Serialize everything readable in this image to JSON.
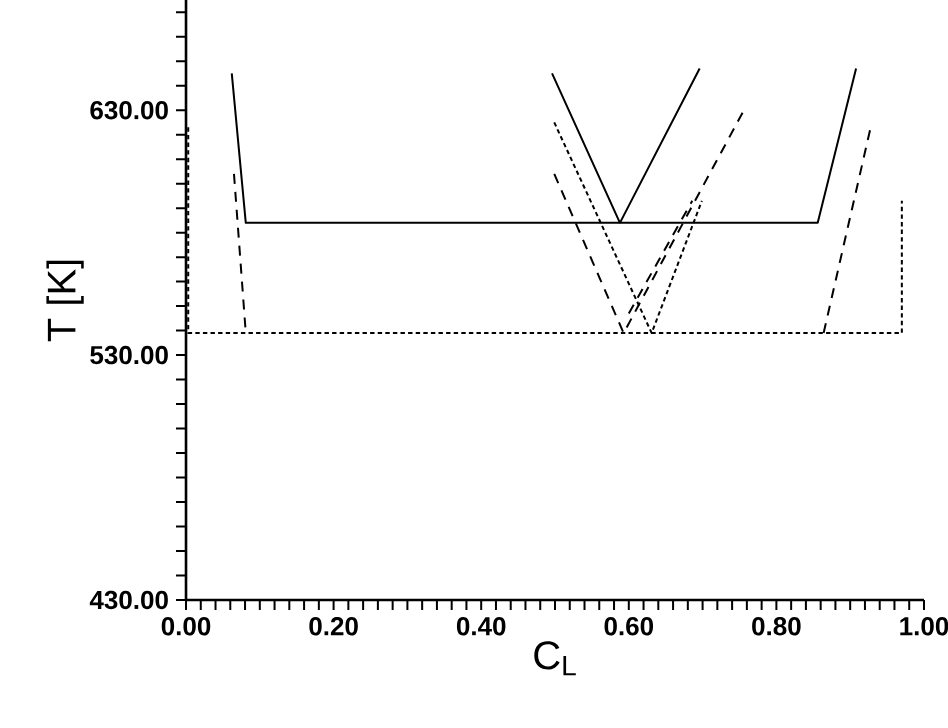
{
  "chart_data": {
    "type": "line",
    "xlabel": "C$_{L}$",
    "ylabel": "T [K]",
    "xlim": [
      0,
      1
    ],
    "ylim": [
      430,
      675
    ],
    "xticks": [
      {
        "value": 0,
        "label": "0.00"
      },
      {
        "value": 0.02,
        "label": null
      },
      {
        "value": 0.04,
        "label": null
      },
      {
        "value": 0.06,
        "label": null
      },
      {
        "value": 0.08,
        "label": null
      },
      {
        "value": 0.1,
        "label": null
      },
      {
        "value": 0.12,
        "label": null
      },
      {
        "value": 0.14,
        "label": null
      },
      {
        "value": 0.16,
        "label": null
      },
      {
        "value": 0.18,
        "label": null
      },
      {
        "value": 0.2,
        "label": "0.20"
      },
      {
        "value": 0.22,
        "label": null
      },
      {
        "value": 0.24,
        "label": null
      },
      {
        "value": 0.26,
        "label": null
      },
      {
        "value": 0.28,
        "label": null
      },
      {
        "value": 0.3,
        "label": null
      },
      {
        "value": 0.32,
        "label": null
      },
      {
        "value": 0.34,
        "label": null
      },
      {
        "value": 0.36,
        "label": null
      },
      {
        "value": 0.38,
        "label": null
      },
      {
        "value": 0.4,
        "label": "0.40"
      },
      {
        "value": 0.42,
        "label": null
      },
      {
        "value": 0.44,
        "label": null
      },
      {
        "value": 0.46,
        "label": null
      },
      {
        "value": 0.48,
        "label": null
      },
      {
        "value": 0.5,
        "label": null
      },
      {
        "value": 0.52,
        "label": null
      },
      {
        "value": 0.54,
        "label": null
      },
      {
        "value": 0.56,
        "label": null
      },
      {
        "value": 0.58,
        "label": null
      },
      {
        "value": 0.6,
        "label": "0.60"
      },
      {
        "value": 0.62,
        "label": null
      },
      {
        "value": 0.64,
        "label": null
      },
      {
        "value": 0.66,
        "label": null
      },
      {
        "value": 0.68,
        "label": null
      },
      {
        "value": 0.7,
        "label": null
      },
      {
        "value": 0.72,
        "label": null
      },
      {
        "value": 0.74,
        "label": null
      },
      {
        "value": 0.76,
        "label": null
      },
      {
        "value": 0.78,
        "label": null
      },
      {
        "value": 0.8,
        "label": "0.80"
      },
      {
        "value": 0.82,
        "label": null
      },
      {
        "value": 0.84,
        "label": null
      },
      {
        "value": 0.86,
        "label": null
      },
      {
        "value": 0.88,
        "label": null
      },
      {
        "value": 0.9,
        "label": null
      },
      {
        "value": 0.92,
        "label": null
      },
      {
        "value": 0.94,
        "label": null
      },
      {
        "value": 0.96,
        "label": null
      },
      {
        "value": 0.98,
        "label": null
      },
      {
        "value": 1,
        "label": "1.00"
      }
    ],
    "yticks": [
      {
        "value": 430,
        "label": "430.00"
      },
      {
        "value": 440,
        "label": null
      },
      {
        "value": 450,
        "label": null
      },
      {
        "value": 460,
        "label": null
      },
      {
        "value": 470,
        "label": null
      },
      {
        "value": 480,
        "label": null
      },
      {
        "value": 490,
        "label": null
      },
      {
        "value": 500,
        "label": null
      },
      {
        "value": 510,
        "label": null
      },
      {
        "value": 520,
        "label": null
      },
      {
        "value": 530,
        "label": "530.00"
      },
      {
        "value": 540,
        "label": null
      },
      {
        "value": 550,
        "label": null
      },
      {
        "value": 560,
        "label": null
      },
      {
        "value": 570,
        "label": null
      },
      {
        "value": 580,
        "label": null
      },
      {
        "value": 590,
        "label": null
      },
      {
        "value": 600,
        "label": null
      },
      {
        "value": 610,
        "label": null
      },
      {
        "value": 620,
        "label": null
      },
      {
        "value": 630,
        "label": "630.00"
      },
      {
        "value": 640,
        "label": null
      },
      {
        "value": 650,
        "label": null
      },
      {
        "value": 660,
        "label": null
      },
      {
        "value": 670,
        "label": null
      }
    ],
    "series": [
      {
        "color": "#000000",
        "line_style": "solid",
        "x": [
          0.062,
          0.081,
          0.856,
          0.908,
          null,
          0.496,
          0.588,
          0.696
        ],
        "values": [
          645,
          584,
          584,
          647,
          null,
          645,
          584,
          647
        ]
      },
      {
        "color": "#000000",
        "line_style": "dashed",
        "x": [
          0.065,
          0.081,
          null,
          0.499,
          0.593,
          0.756,
          null,
          0.6,
          0.686,
          null,
          0.864,
          0.927
        ],
        "values": [
          604,
          539,
          null,
          604,
          539,
          630,
          null,
          547,
          593,
          null,
          539,
          622
        ]
      },
      {
        "color": "#000000",
        "line_style": "dotted",
        "x": [
          0.003,
          0.003,
          0.97,
          0.97,
          null,
          0.499,
          0.631,
          0.699
        ],
        "values": [
          623,
          539,
          539,
          593,
          null,
          625,
          539,
          593
        ]
      }
    ]
  }
}
